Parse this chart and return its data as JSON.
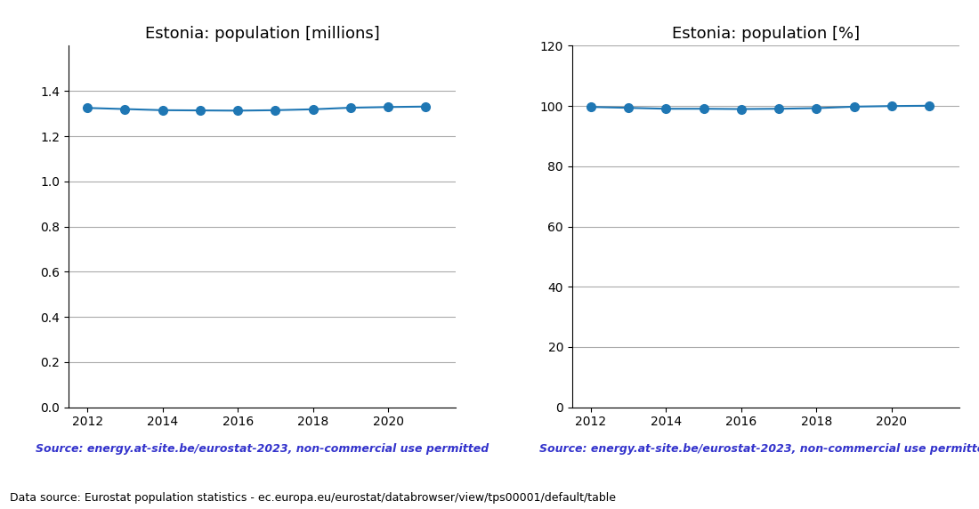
{
  "years": [
    2012,
    2013,
    2014,
    2015,
    2016,
    2017,
    2018,
    2019,
    2020,
    2021
  ],
  "population_millions": [
    1.325,
    1.32,
    1.315,
    1.314,
    1.313,
    1.315,
    1.319,
    1.326,
    1.329,
    1.331
  ],
  "population_pct": [
    99.7,
    99.4,
    99.1,
    99.1,
    99.0,
    99.1,
    99.3,
    99.8,
    100.0,
    100.1
  ],
  "title_millions": "Estonia: population [millions]",
  "title_pct": "Estonia: population [%]",
  "source_text": "Source: energy.at-site.be/eurostat-2023, non-commercial use permitted",
  "footer_text": "Data source: Eurostat population statistics - ec.europa.eu/eurostat/databrowser/view/tps00001/default/table",
  "line_color": "#1f77b4",
  "source_color": "#3333cc",
  "ylim_millions": [
    0.0,
    1.6
  ],
  "yticks_millions": [
    0.0,
    0.2,
    0.4,
    0.6,
    0.8,
    1.0,
    1.2,
    1.4
  ],
  "ylim_pct": [
    0,
    120
  ],
  "yticks_pct": [
    0,
    20,
    40,
    60,
    80,
    100,
    120
  ],
  "grid_color": "#aaaaaa",
  "marker": "o",
  "markersize": 7,
  "linewidth": 1.5
}
